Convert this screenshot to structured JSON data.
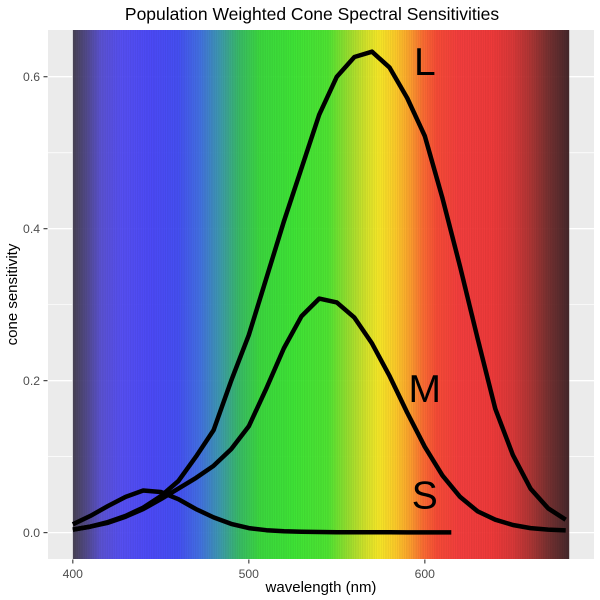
{
  "title": "Population Weighted Cone Spectral Sensitivities",
  "axes": {
    "x": {
      "label": "wavelength (nm)",
      "tick_labels": [
        "400",
        "500",
        "600"
      ]
    },
    "y": {
      "label": "cone sensitivity",
      "tick_labels": [
        "0.0",
        "0.2",
        "0.4",
        "0.6"
      ]
    }
  },
  "colors": {
    "panel_background": "#EBEBEB",
    "gridline": "#FFFFFF",
    "tick_mark": "#333333",
    "tick_label": "#4D4D4D",
    "curve": "#000000",
    "plot_background": "#FFFFFF"
  },
  "chart_data": {
    "type": "line",
    "title": "Population Weighted Cone Spectral Sensitivities",
    "xlabel": "wavelength (nm)",
    "ylabel": "cone sensitivity",
    "x_domain": [
      385.9,
      696.1
    ],
    "y_domain": [
      -0.0347,
      0.6615
    ],
    "x_ticks": [
      400,
      500,
      600
    ],
    "y_ticks": [
      0.0,
      0.2,
      0.4,
      0.6
    ],
    "x_minor_ticks": [
      450,
      550,
      650
    ],
    "y_minor_ticks": [
      0.1,
      0.3,
      0.5
    ],
    "grid": true,
    "legend_position": "none (curves labeled directly L, M, S)",
    "series": [
      {
        "name": "L",
        "x": [
          400,
          410,
          420,
          430,
          440,
          450,
          460,
          470,
          480,
          490,
          500,
          510,
          520,
          530,
          540,
          550,
          560,
          570,
          580,
          590,
          600,
          610,
          620,
          630,
          640,
          650,
          660,
          670,
          680
        ],
        "values": [
          0.004,
          0.008,
          0.014,
          0.022,
          0.033,
          0.048,
          0.068,
          0.1,
          0.135,
          0.2,
          0.26,
          0.335,
          0.41,
          0.48,
          0.55,
          0.6,
          0.626,
          0.633,
          0.612,
          0.572,
          0.522,
          0.44,
          0.35,
          0.255,
          0.163,
          0.102,
          0.058,
          0.032,
          0.017
        ]
      },
      {
        "name": "M",
        "x": [
          400,
          410,
          420,
          430,
          440,
          450,
          460,
          470,
          480,
          490,
          500,
          510,
          520,
          530,
          540,
          550,
          560,
          570,
          580,
          590,
          600,
          610,
          620,
          630,
          640,
          650,
          660,
          670,
          680
        ],
        "values": [
          0.004,
          0.008,
          0.013,
          0.021,
          0.031,
          0.044,
          0.058,
          0.072,
          0.088,
          0.11,
          0.14,
          0.19,
          0.243,
          0.285,
          0.308,
          0.303,
          0.283,
          0.249,
          0.206,
          0.158,
          0.113,
          0.075,
          0.047,
          0.028,
          0.017,
          0.01,
          0.006,
          0.004,
          0.003
        ]
      },
      {
        "name": "S",
        "x": [
          400,
          410,
          420,
          430,
          440,
          450,
          460,
          470,
          480,
          490,
          500,
          510,
          520,
          530,
          540,
          550,
          560,
          570,
          580,
          590,
          600,
          610,
          615
        ],
        "values": [
          0.011,
          0.022,
          0.035,
          0.047,
          0.0555,
          0.0535,
          0.044,
          0.031,
          0.02,
          0.0115,
          0.006,
          0.0032,
          0.0018,
          0.0011,
          0.0008,
          0.0006,
          0.0005,
          0.0004,
          0.0004,
          0.0003,
          0.0003,
          0.0003,
          0.0003
        ]
      }
    ],
    "annotations": [
      {
        "label": "L",
        "x": 600,
        "y": 0.62
      },
      {
        "label": "M",
        "x": 600,
        "y": 0.19
      },
      {
        "label": "S",
        "x": 600,
        "y": 0.05
      }
    ],
    "spectrum": {
      "x_start": 400,
      "x_end": 682,
      "stops": [
        {
          "nm": 400,
          "color": "#3b3547"
        },
        {
          "nm": 408,
          "color": "#463d85"
        },
        {
          "nm": 416,
          "color": "#4f46cf"
        },
        {
          "nm": 428,
          "color": "#4a43f2"
        },
        {
          "nm": 445,
          "color": "#3f3df6"
        },
        {
          "nm": 460,
          "color": "#3843f2"
        },
        {
          "nm": 472,
          "color": "#3566e0"
        },
        {
          "nm": 484,
          "color": "#2f94a6"
        },
        {
          "nm": 494,
          "color": "#2bb45e"
        },
        {
          "nm": 506,
          "color": "#2ed431"
        },
        {
          "nm": 525,
          "color": "#31e228"
        },
        {
          "nm": 545,
          "color": "#42e224"
        },
        {
          "nm": 556,
          "color": "#8edc20"
        },
        {
          "nm": 566,
          "color": "#cee01c"
        },
        {
          "nm": 574,
          "color": "#f6e618"
        },
        {
          "nm": 583,
          "color": "#fcc81a"
        },
        {
          "nm": 591,
          "color": "#fc9c1e"
        },
        {
          "nm": 599,
          "color": "#fa6224"
        },
        {
          "nm": 607,
          "color": "#f63e28"
        },
        {
          "nm": 620,
          "color": "#f23030"
        },
        {
          "nm": 638,
          "color": "#ee2c2c"
        },
        {
          "nm": 650,
          "color": "#d62a2a"
        },
        {
          "nm": 660,
          "color": "#a82726"
        },
        {
          "nm": 670,
          "color": "#6e2222"
        },
        {
          "nm": 682,
          "color": "#38191c"
        }
      ]
    }
  }
}
